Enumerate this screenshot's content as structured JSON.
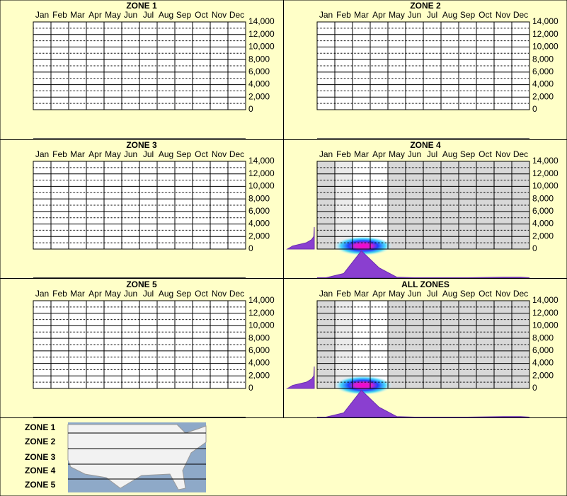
{
  "chart_data": [
    {
      "type": "heatmap",
      "title": "ZONE 1",
      "categories": [
        "Jan",
        "Feb",
        "Mar",
        "Apr",
        "May",
        "Jun",
        "Jul",
        "Aug",
        "Sep",
        "Oct",
        "Nov",
        "Dec"
      ],
      "ylim": [
        0,
        14000
      ],
      "yticks": [
        0,
        {
          "value": 2000,
          "label": "2,000"
        },
        {
          "value": 4000,
          "label": "4,000"
        },
        {
          "value": 6000,
          "label": "6,000"
        },
        {
          "value": 8000,
          "label": "8,000"
        },
        {
          "value": 10000,
          "label": "10,000"
        },
        {
          "value": 12000,
          "label": "12,000"
        },
        {
          "value": 14000,
          "label": "14,000"
        }
      ]
    },
    {
      "type": "heatmap",
      "title": "ZONE 2",
      "categories": [
        "Jan",
        "Feb",
        "Mar",
        "Apr",
        "May",
        "Jun",
        "Jul",
        "Aug",
        "Sep",
        "Oct",
        "Nov",
        "Dec"
      ],
      "ylim": [
        0,
        14000
      ],
      "yticks": [
        0,
        {
          "value": 2000,
          "label": "2,000"
        },
        {
          "value": 4000,
          "label": "4,000"
        },
        {
          "value": 6000,
          "label": "6,000"
        },
        {
          "value": 8000,
          "label": "8,000"
        },
        {
          "value": 10000,
          "label": "10,000"
        },
        {
          "value": 12000,
          "label": "12,000"
        },
        {
          "value": 14000,
          "label": "14,000"
        }
      ]
    },
    {
      "type": "heatmap",
      "title": "ZONE 3",
      "categories": [
        "Jan",
        "Feb",
        "Mar",
        "Apr",
        "May",
        "Jun",
        "Jul",
        "Aug",
        "Sep",
        "Oct",
        "Nov",
        "Dec"
      ],
      "ylim": [
        0,
        14000
      ],
      "yticks": [
        0,
        {
          "value": 2000,
          "label": "2,000"
        },
        {
          "value": 4000,
          "label": "4,000"
        },
        {
          "value": 6000,
          "label": "6,000"
        },
        {
          "value": 8000,
          "label": "8,000"
        },
        {
          "value": 10000,
          "label": "10,000"
        },
        {
          "value": 12000,
          "label": "12,000"
        },
        {
          "value": 14000,
          "label": "14,000"
        }
      ]
    },
    {
      "type": "heatmap",
      "title": "ZONE 4",
      "categories": [
        "Jan",
        "Feb",
        "Mar",
        "Apr",
        "May",
        "Jun",
        "Jul",
        "Aug",
        "Sep",
        "Oct",
        "Nov",
        "Dec"
      ],
      "ylim": [
        0,
        14000
      ],
      "yticks": [
        0,
        {
          "value": 2000,
          "label": "2,000"
        },
        {
          "value": 4000,
          "label": "4,000"
        },
        {
          "value": 6000,
          "label": "6,000"
        },
        {
          "value": 8000,
          "label": "8,000"
        },
        {
          "value": 10000,
          "label": "10,000"
        },
        {
          "value": 12000,
          "label": "12,000"
        },
        {
          "value": 14000,
          "label": "14,000"
        }
      ],
      "shading": [
        1,
        0.5,
        0,
        0,
        1,
        1,
        1,
        1,
        1,
        1,
        1,
        1
      ],
      "hotspot": {
        "month": 2.6,
        "elevation": 500
      },
      "month_density": [
        0,
        0.15,
        0.95,
        0.35,
        0.02,
        0,
        0,
        0,
        0,
        0.01,
        0.02,
        0.02
      ],
      "elevations": [
        0,
        500,
        1000,
        1500,
        2000,
        3500
      ],
      "elevation_density": [
        1,
        0.8,
        0.3,
        0.1,
        0.02,
        0
      ]
    },
    {
      "type": "heatmap",
      "title": "ZONE 5",
      "categories": [
        "Jan",
        "Feb",
        "Mar",
        "Apr",
        "May",
        "Jun",
        "Jul",
        "Aug",
        "Sep",
        "Oct",
        "Nov",
        "Dec"
      ],
      "ylim": [
        0,
        14000
      ],
      "yticks": [
        0,
        {
          "value": 2000,
          "label": "2,000"
        },
        {
          "value": 4000,
          "label": "4,000"
        },
        {
          "value": 6000,
          "label": "6,000"
        },
        {
          "value": 8000,
          "label": "8,000"
        },
        {
          "value": 10000,
          "label": "10,000"
        },
        {
          "value": 12000,
          "label": "12,000"
        },
        {
          "value": 14000,
          "label": "14,000"
        }
      ]
    },
    {
      "type": "heatmap",
      "title": "ALL ZONES",
      "categories": [
        "Jan",
        "Feb",
        "Mar",
        "Apr",
        "May",
        "Jun",
        "Jul",
        "Aug",
        "Sep",
        "Oct",
        "Nov",
        "Dec"
      ],
      "ylim": [
        0,
        14000
      ],
      "yticks": [
        0,
        {
          "value": 2000,
          "label": "2,000"
        },
        {
          "value": 4000,
          "label": "4,000"
        },
        {
          "value": 6000,
          "label": "6,000"
        },
        {
          "value": 8000,
          "label": "8,000"
        },
        {
          "value": 10000,
          "label": "10,000"
        },
        {
          "value": 12000,
          "label": "12,000"
        },
        {
          "value": 14000,
          "label": "14,000"
        }
      ],
      "shading": [
        1,
        0.5,
        0,
        0,
        1,
        1,
        1,
        1,
        1,
        1,
        1,
        1
      ],
      "hotspot": {
        "month": 2.6,
        "elevation": 500
      },
      "month_density": [
        0,
        0.15,
        0.95,
        0.35,
        0.02,
        0,
        0,
        0,
        0,
        0.01,
        0.02,
        0.02
      ],
      "elevations": [
        0,
        500,
        1000,
        1500,
        2000,
        3500
      ],
      "elevation_density": [
        1,
        0.8,
        0.3,
        0.1,
        0.02,
        0
      ]
    }
  ],
  "legend": {
    "labels": [
      "ZONE 1",
      "ZONE 2",
      "ZONE 3",
      "ZONE 4",
      "ZONE 5"
    ]
  }
}
